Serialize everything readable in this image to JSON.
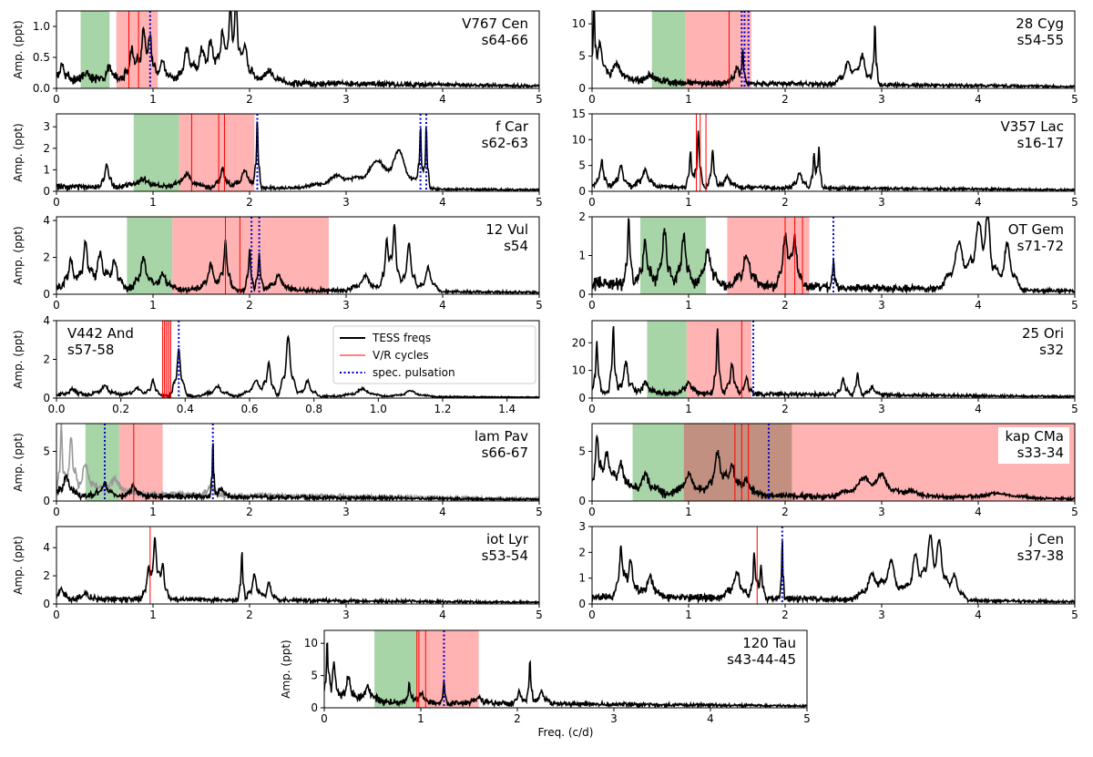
{
  "legend": {
    "items": [
      {
        "label": "TESS freqs",
        "color": "#000000",
        "style": "solid"
      },
      {
        "label": "V/R cycles",
        "color": "#ff0000",
        "style": "solid"
      },
      {
        "label": "spec. pulsation",
        "color": "#0000cc",
        "style": "dotted"
      }
    ]
  },
  "colors": {
    "green_band": "#a8d5a8",
    "red_band": "#ffb3b3",
    "overlap_band": "#c29080",
    "trace": "#000000",
    "trace_secondary": "#999999"
  },
  "chart_data": [
    {
      "type": "line",
      "star": "V767 Cen",
      "sectors": "s64-66",
      "xlim": [
        0,
        5
      ],
      "ylim": [
        0,
        1.25
      ],
      "yticks": [
        0.0,
        0.5,
        1.0
      ],
      "xticks": [
        0,
        1,
        2,
        3,
        4,
        5
      ],
      "ylabel": "Amp. (ppt)",
      "xlabel": "",
      "green": [
        0.25,
        0.55
      ],
      "red": [
        0.62,
        1.05
      ],
      "vr": [
        0.75,
        0.85
      ],
      "pulse": [
        0.97
      ],
      "peaks": [
        [
          0.06,
          0.25,
          0.04
        ],
        [
          0.3,
          0.12,
          0.06
        ],
        [
          0.55,
          0.22,
          0.06
        ],
        [
          0.78,
          0.55,
          0.04
        ],
        [
          0.9,
          0.8,
          0.04
        ],
        [
          0.97,
          0.6,
          0.03
        ],
        [
          1.1,
          0.3,
          0.06
        ],
        [
          1.35,
          0.55,
          0.05
        ],
        [
          1.5,
          0.45,
          0.05
        ],
        [
          1.6,
          0.6,
          0.05
        ],
        [
          1.72,
          0.8,
          0.04
        ],
        [
          1.8,
          0.95,
          0.03
        ],
        [
          1.86,
          1.05,
          0.03
        ],
        [
          1.95,
          0.6,
          0.05
        ],
        [
          2.2,
          0.2,
          0.08
        ]
      ],
      "noise": 0.07,
      "seed": 11
    },
    {
      "type": "line",
      "star": "28 Cyg",
      "sectors": "s54-55",
      "xlim": [
        0,
        5
      ],
      "ylim": [
        0,
        12
      ],
      "yticks": [
        0,
        5,
        10
      ],
      "xticks": [
        0,
        1,
        2,
        3,
        4,
        5
      ],
      "ylabel": "",
      "xlabel": "",
      "green": [
        0.62,
        0.97
      ],
      "red": [
        0.97,
        1.65
      ],
      "vr": [
        1.42
      ],
      "pulse": [
        1.55,
        1.58,
        1.62
      ],
      "peaks": [
        [
          0.02,
          11,
          0.015
        ],
        [
          0.08,
          6,
          0.04
        ],
        [
          0.25,
          3,
          0.08
        ],
        [
          0.6,
          1.2,
          0.1
        ],
        [
          1.5,
          2.5,
          0.04
        ],
        [
          1.56,
          4.5,
          0.015
        ],
        [
          2.65,
          3.5,
          0.06
        ],
        [
          2.8,
          4.5,
          0.05
        ],
        [
          2.93,
          9.5,
          0.015
        ]
      ],
      "noise": 0.5,
      "seed": 12
    },
    {
      "type": "line",
      "star": "f Car",
      "sectors": "s62-63",
      "xlim": [
        0,
        5
      ],
      "ylim": [
        0,
        3.6
      ],
      "yticks": [
        0,
        1,
        2,
        3
      ],
      "xticks": [
        0,
        1,
        2,
        3,
        4,
        5
      ],
      "ylabel": "Amp. (ppt)",
      "xlabel": "",
      "green": [
        0.8,
        1.27
      ],
      "red": [
        1.27,
        2.05
      ],
      "vr": [
        1.4,
        1.68,
        1.74
      ],
      "pulse": [
        2.08,
        3.77,
        3.83
      ],
      "peaks": [
        [
          0.52,
          1.1,
          0.03
        ],
        [
          0.9,
          0.35,
          0.1
        ],
        [
          1.35,
          0.6,
          0.08
        ],
        [
          1.72,
          0.9,
          0.04
        ],
        [
          1.95,
          0.8,
          0.06
        ],
        [
          2.08,
          3.1,
          0.015
        ],
        [
          2.9,
          0.6,
          0.15
        ],
        [
          3.3,
          1.1,
          0.15
        ],
        [
          3.55,
          1.5,
          0.12
        ],
        [
          3.77,
          2.6,
          0.015
        ],
        [
          3.83,
          2.9,
          0.015
        ]
      ],
      "noise": 0.12,
      "seed": 13
    },
    {
      "type": "line",
      "star": "V357 Lac",
      "sectors": "s16-17",
      "xlim": [
        0,
        5
      ],
      "ylim": [
        0,
        15
      ],
      "yticks": [
        0,
        5,
        10,
        15
      ],
      "xticks": [
        0,
        1,
        2,
        3,
        4,
        5
      ],
      "ylabel": "",
      "xlabel": "",
      "green": null,
      "red": null,
      "vr": [
        1.08,
        1.12,
        1.18
      ],
      "pulse": [],
      "peaks": [
        [
          0.1,
          5,
          0.03
        ],
        [
          0.3,
          4,
          0.04
        ],
        [
          0.55,
          3.5,
          0.05
        ],
        [
          1.02,
          7,
          0.02
        ],
        [
          1.1,
          11,
          0.02
        ],
        [
          1.25,
          7.5,
          0.02
        ],
        [
          1.4,
          2,
          0.05
        ],
        [
          2.15,
          3,
          0.04
        ],
        [
          2.3,
          6.5,
          0.02
        ],
        [
          2.35,
          8,
          0.015
        ]
      ],
      "noise": 0.5,
      "seed": 14
    },
    {
      "type": "line",
      "star": "12 Vul",
      "sectors": "s54",
      "xlim": [
        0,
        5
      ],
      "ylim": [
        0,
        4.2
      ],
      "yticks": [
        0,
        2,
        4
      ],
      "xticks": [
        0,
        1,
        2,
        3,
        4,
        5
      ],
      "ylabel": "Amp. (ppt)",
      "xlabel": "",
      "green": [
        0.73,
        1.2
      ],
      "red": [
        1.2,
        2.82
      ],
      "vr": [
        1.75,
        1.9
      ],
      "pulse": [
        2.02,
        2.1
      ],
      "peaks": [
        [
          0.15,
          1.6,
          0.04
        ],
        [
          0.3,
          2.5,
          0.04
        ],
        [
          0.45,
          1.9,
          0.05
        ],
        [
          0.6,
          1.5,
          0.05
        ],
        [
          0.9,
          1.7,
          0.05
        ],
        [
          1.1,
          0.8,
          0.06
        ],
        [
          1.6,
          1.4,
          0.05
        ],
        [
          1.75,
          2.6,
          0.03
        ],
        [
          2.0,
          2.1,
          0.02
        ],
        [
          2.1,
          1.9,
          0.02
        ],
        [
          2.3,
          0.8,
          0.06
        ],
        [
          3.2,
          0.8,
          0.08
        ],
        [
          3.42,
          2.8,
          0.03
        ],
        [
          3.5,
          3.6,
          0.03
        ],
        [
          3.65,
          2.6,
          0.04
        ],
        [
          3.85,
          1.3,
          0.05
        ]
      ],
      "noise": 0.18,
      "seed": 15
    },
    {
      "type": "line",
      "star": "OT Gem",
      "sectors": "s71-72",
      "xlim": [
        0,
        5
      ],
      "ylim": [
        0,
        2
      ],
      "yticks": [
        0,
        1,
        2
      ],
      "xticks": [
        0,
        1,
        2,
        3,
        4,
        5
      ],
      "ylabel": "",
      "xlabel": "",
      "green": [
        0.5,
        1.18
      ],
      "red": [
        1.4,
        2.25
      ],
      "vr": [
        2.0,
        2.1,
        2.18
      ],
      "pulse": [
        2.5
      ],
      "peaks": [
        [
          0.38,
          1.7,
          0.02
        ],
        [
          0.55,
          1.1,
          0.04
        ],
        [
          0.75,
          1.4,
          0.04
        ],
        [
          0.95,
          1.3,
          0.04
        ],
        [
          1.2,
          0.9,
          0.05
        ],
        [
          1.6,
          0.8,
          0.06
        ],
        [
          2.0,
          1.3,
          0.04
        ],
        [
          2.1,
          1.2,
          0.04
        ],
        [
          2.5,
          0.7,
          0.015
        ],
        [
          3.8,
          1.2,
          0.08
        ],
        [
          4.0,
          1.5,
          0.06
        ],
        [
          4.1,
          1.6,
          0.05
        ],
        [
          4.3,
          1.2,
          0.06
        ]
      ],
      "noise": 0.15,
      "seed": 16
    },
    {
      "type": "line",
      "star": "V442 And",
      "sectors": "s57-58",
      "xlim": [
        0,
        1.5
      ],
      "ylim": [
        0,
        4
      ],
      "yticks": [
        0,
        2,
        4
      ],
      "xticks": [
        0.0,
        0.2,
        0.4,
        0.6,
        0.8,
        1.0,
        1.2,
        1.4
      ],
      "ylabel": "Amp. (ppt)",
      "xlabel": "",
      "green": null,
      "red": null,
      "vr": [
        0.33,
        0.335,
        0.34,
        0.345,
        0.35,
        0.355
      ],
      "pulse": [
        0.38
      ],
      "peaks": [
        [
          0.05,
          0.3,
          0.02
        ],
        [
          0.15,
          0.5,
          0.02
        ],
        [
          0.25,
          0.4,
          0.02
        ],
        [
          0.3,
          0.8,
          0.01
        ],
        [
          0.38,
          2.4,
          0.01
        ],
        [
          0.5,
          0.5,
          0.02
        ],
        [
          0.62,
          0.8,
          0.02
        ],
        [
          0.66,
          1.6,
          0.01
        ],
        [
          0.72,
          3.1,
          0.012
        ],
        [
          0.78,
          0.8,
          0.015
        ],
        [
          0.95,
          0.4,
          0.03
        ],
        [
          1.1,
          0.3,
          0.03
        ]
      ],
      "noise": 0.08,
      "seed": 17
    },
    {
      "type": "line",
      "star": "25 Ori",
      "sectors": "s32",
      "xlim": [
        0,
        5
      ],
      "ylim": [
        0,
        28
      ],
      "yticks": [
        0,
        10,
        20
      ],
      "xticks": [
        0,
        1,
        2,
        3,
        4,
        5
      ],
      "ylabel": "",
      "xlabel": "",
      "green": [
        0.57,
        0.98
      ],
      "red": [
        0.98,
        1.65
      ],
      "vr": [
        1.55
      ],
      "pulse": [
        1.67
      ],
      "peaks": [
        [
          0.05,
          18,
          0.02
        ],
        [
          0.22,
          24,
          0.02
        ],
        [
          0.35,
          11,
          0.04
        ],
        [
          0.55,
          4,
          0.05
        ],
        [
          1.0,
          4,
          0.05
        ],
        [
          1.3,
          23,
          0.02
        ],
        [
          1.45,
          11,
          0.03
        ],
        [
          1.6,
          6,
          0.03
        ],
        [
          2.6,
          6,
          0.03
        ],
        [
          2.75,
          8,
          0.02
        ],
        [
          2.9,
          3,
          0.04
        ]
      ],
      "noise": 1.0,
      "seed": 18
    },
    {
      "type": "line",
      "star": "lam Pav",
      "sectors": "s66-67",
      "xlim": [
        0,
        5
      ],
      "ylim": [
        0,
        7.8
      ],
      "yticks": [
        0,
        5
      ],
      "xticks": [
        0,
        1,
        2,
        3,
        4,
        5
      ],
      "ylabel": "Amp. (ppt)",
      "xlabel": "",
      "green": [
        0.3,
        0.65
      ],
      "red": [
        0.65,
        1.1
      ],
      "vr": [
        0.8
      ],
      "pulse": [
        0.5,
        1.62
      ],
      "peaks": [
        [
          0.1,
          2,
          0.05
        ],
        [
          0.5,
          1.2,
          0.05
        ],
        [
          0.8,
          1,
          0.05
        ],
        [
          1.62,
          5.8,
          0.01
        ],
        [
          1.7,
          0.8,
          0.05
        ]
      ],
      "noise": 0.3,
      "seed": 19,
      "secondary_peaks": [
        [
          0.05,
          7,
          0.02
        ],
        [
          0.15,
          6,
          0.03
        ],
        [
          0.3,
          3,
          0.06
        ],
        [
          0.6,
          1.5,
          0.1
        ],
        [
          1.6,
          1,
          0.05
        ]
      ]
    },
    {
      "type": "line",
      "star": "kap CMa",
      "sectors": "s33-34",
      "xlim": [
        0,
        5
      ],
      "ylim": [
        0,
        7.8
      ],
      "yticks": [
        0,
        5
      ],
      "xticks": [
        0,
        1,
        2,
        3,
        4,
        5
      ],
      "ylabel": "",
      "xlabel": "",
      "green": [
        0.42,
        0.95
      ],
      "red": [
        0.95,
        5.0
      ],
      "overlap": [
        0.95,
        2.07
      ],
      "vr": [
        1.48,
        1.55,
        1.62
      ],
      "pulse": [
        1.83
      ],
      "peaks": [
        [
          0.05,
          5.5,
          0.03
        ],
        [
          0.15,
          4,
          0.05
        ],
        [
          0.3,
          3,
          0.06
        ],
        [
          0.55,
          2,
          0.08
        ],
        [
          1.0,
          2,
          0.08
        ],
        [
          1.3,
          4.2,
          0.06
        ],
        [
          1.45,
          3,
          0.05
        ],
        [
          1.6,
          1.6,
          0.06
        ],
        [
          2.8,
          1.6,
          0.12
        ],
        [
          3.0,
          1.8,
          0.1
        ],
        [
          3.3,
          0.6,
          0.15
        ],
        [
          4.2,
          0.5,
          0.2
        ]
      ],
      "noise": 0.4,
      "seed": 20
    },
    {
      "type": "line",
      "star": "iot Lyr",
      "sectors": "s53-54",
      "xlim": [
        0,
        5
      ],
      "ylim": [
        0,
        5.5
      ],
      "yticks": [
        0,
        2,
        4
      ],
      "xticks": [
        0,
        1,
        2,
        3,
        4,
        5
      ],
      "ylabel": "Amp. (ppt)",
      "xlabel": "",
      "green": null,
      "red": null,
      "vr": [
        0.97
      ],
      "pulse": [],
      "peaks": [
        [
          0.05,
          0.8,
          0.03
        ],
        [
          0.3,
          0.4,
          0.05
        ],
        [
          0.95,
          2.0,
          0.03
        ],
        [
          1.02,
          4.2,
          0.03
        ],
        [
          1.1,
          2.5,
          0.03
        ],
        [
          1.92,
          3.5,
          0.015
        ],
        [
          2.05,
          1.8,
          0.04
        ],
        [
          2.2,
          1.2,
          0.04
        ]
      ],
      "noise": 0.2,
      "seed": 21
    },
    {
      "type": "line",
      "star": "j Cen",
      "sectors": "s37-38",
      "xlim": [
        0,
        5
      ],
      "ylim": [
        0,
        3
      ],
      "yticks": [
        0,
        1,
        2,
        3
      ],
      "xticks": [
        0,
        1,
        2,
        3,
        4,
        5
      ],
      "ylabel": "",
      "xlabel": "",
      "green": null,
      "red": null,
      "vr": [
        1.71
      ],
      "pulse": [
        1.97
      ],
      "peaks": [
        [
          0.3,
          1.9,
          0.03
        ],
        [
          0.4,
          1.4,
          0.04
        ],
        [
          0.6,
          0.8,
          0.06
        ],
        [
          1.5,
          1.0,
          0.06
        ],
        [
          1.68,
          1.8,
          0.02
        ],
        [
          1.75,
          1.3,
          0.02
        ],
        [
          1.97,
          2.4,
          0.01
        ],
        [
          2.9,
          1.0,
          0.08
        ],
        [
          3.1,
          1.5,
          0.07
        ],
        [
          3.35,
          1.8,
          0.06
        ],
        [
          3.5,
          2.2,
          0.05
        ],
        [
          3.6,
          2.0,
          0.05
        ],
        [
          3.75,
          1.0,
          0.06
        ]
      ],
      "noise": 0.15,
      "seed": 22
    },
    {
      "type": "line",
      "star": "120 Tau",
      "sectors": "s43-44-45",
      "xlim": [
        0,
        5
      ],
      "ylim": [
        0,
        12
      ],
      "yticks": [
        0,
        5,
        10
      ],
      "xticks": [
        0,
        1,
        2,
        3,
        4,
        5
      ],
      "ylabel": "Amp. (ppt)",
      "xlabel": "Freq. (c/d)",
      "green": [
        0.52,
        0.96
      ],
      "red": [
        0.96,
        1.6
      ],
      "vr": [
        0.96,
        0.98,
        1.05
      ],
      "pulse": [
        1.24
      ],
      "peaks": [
        [
          0.03,
          9.5,
          0.015
        ],
        [
          0.1,
          6,
          0.03
        ],
        [
          0.25,
          4,
          0.04
        ],
        [
          0.45,
          2.5,
          0.06
        ],
        [
          0.88,
          3.0,
          0.02
        ],
        [
          1.0,
          1.5,
          0.04
        ],
        [
          1.24,
          3.5,
          0.012
        ],
        [
          1.6,
          0.8,
          0.06
        ],
        [
          2.02,
          2.0,
          0.03
        ],
        [
          2.13,
          7,
          0.015
        ],
        [
          2.25,
          2,
          0.04
        ]
      ],
      "noise": 0.5,
      "seed": 23
    }
  ]
}
